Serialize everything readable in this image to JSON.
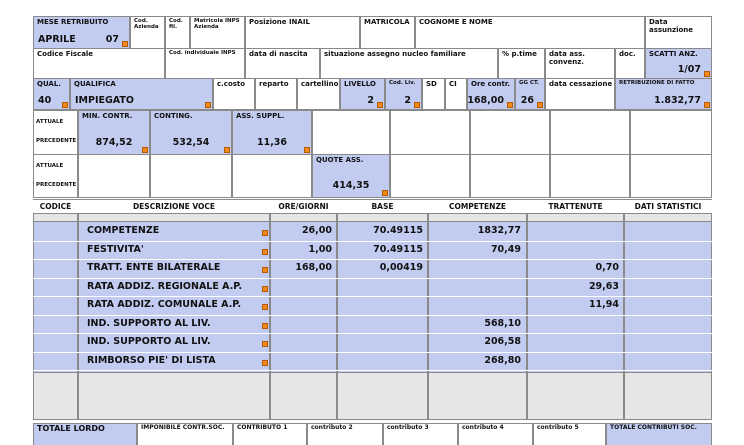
{
  "fields": [
    {
      "label": "MESE RETRIBUITO",
      "values": [
        "APRILE",
        "07"
      ]
    },
    {
      "label": "Cod. Azienda"
    },
    {
      "label": "Cod. fil."
    },
    {
      "label": "Matricola INPS Azienda"
    },
    {
      "label": "Posizione INAIL"
    },
    {
      "label": "MATRICOLA"
    },
    {
      "label": "COGNOME E NOME"
    },
    {
      "label": "Data assunzione"
    },
    {
      "label": "Codice Fiscale"
    },
    {
      "label": "Cod. individuale INPS"
    },
    {
      "label": "data di nascita"
    },
    {
      "label": "situazione assegno nucleo familiare"
    },
    {
      "label": "% p.time"
    },
    {
      "label": "data ass. convenz."
    },
    {
      "label": "doc."
    },
    {
      "label": "SCATTI ANZ.",
      "values": [
        "1/07"
      ]
    },
    {
      "label": "QUAL.",
      "values": [
        "40"
      ]
    },
    {
      "label": "QUALIFICA",
      "values": [
        "IMPIEGATO"
      ]
    },
    {
      "label": "c.costo"
    },
    {
      "label": "reparto"
    },
    {
      "label": "cartellino"
    },
    {
      "label": "LIVELLO",
      "values": [
        "2"
      ]
    },
    {
      "label": "Cod. Liv.",
      "values": [
        "2"
      ]
    },
    {
      "label": "SD"
    },
    {
      "label": "CI"
    },
    {
      "label": "Ore contr.",
      "values": [
        "168,00"
      ]
    },
    {
      "label": "GG CT.",
      "values": [
        "26"
      ]
    },
    {
      "label": "data cessazione"
    },
    {
      "label": "RETRIBUZIONE DI FATTO",
      "values": [
        "1.832,77"
      ]
    },
    {
      "label": "MIN. CONTR.",
      "values": [
        "874,52"
      ]
    },
    {
      "label": "CONTING.",
      "values": [
        "532,54"
      ]
    },
    {
      "label": "ASS. SUPPL.",
      "values": [
        "11,36"
      ]
    },
    {
      "label": "QUOTE ASS.",
      "values": [
        "414,35"
      ]
    }
  ],
  "periodi": [
    "ATTUALE",
    "PRECEDENTE"
  ],
  "voci": {
    "columns": [
      "CODICE",
      "DESCRIZIONE VOCE",
      "ORE/GIORNI",
      "BASE",
      "COMPETENZE",
      "TRATTENUTE",
      "DATI STATISTICI"
    ],
    "rows": [
      {
        "descrizione": "COMPETENZE",
        "ore": "26,00",
        "base": "70.49115",
        "competenze": "1832,77"
      },
      {
        "descrizione": "FESTIVITA'",
        "ore": "1,00",
        "base": "70.49115",
        "competenze": "70,49"
      },
      {
        "descrizione": "TRATT. ENTE BILATERALE",
        "ore": "168,00",
        "base": "0,00419",
        "trattenute": "0,70"
      },
      {
        "descrizione": "RATA ADDIZ. REGIONALE A.P.",
        "trattenute": "29,63"
      },
      {
        "descrizione": "RATA ADDIZ. COMUNALE A.P.",
        "trattenute": "11,94"
      },
      {
        "descrizione": "IND. SUPPORTO AL LIV.",
        "competenze": "568,10"
      },
      {
        "descrizione": "IND. SUPPORTO AL LIV.",
        "competenze": "206,58"
      },
      {
        "descrizione": "RIMBORSO PIE' DI LISTA",
        "competenze": "268,80"
      }
    ]
  },
  "totali": [
    "TOTALE LORDO",
    "IMPONIBILE CONTR.SOC.",
    "CONTRIBUTO 1",
    "contributo 2",
    "contributo 3",
    "contributo 4",
    "contributo 5",
    "TOTALE CONTRIBUTI SOC."
  ]
}
